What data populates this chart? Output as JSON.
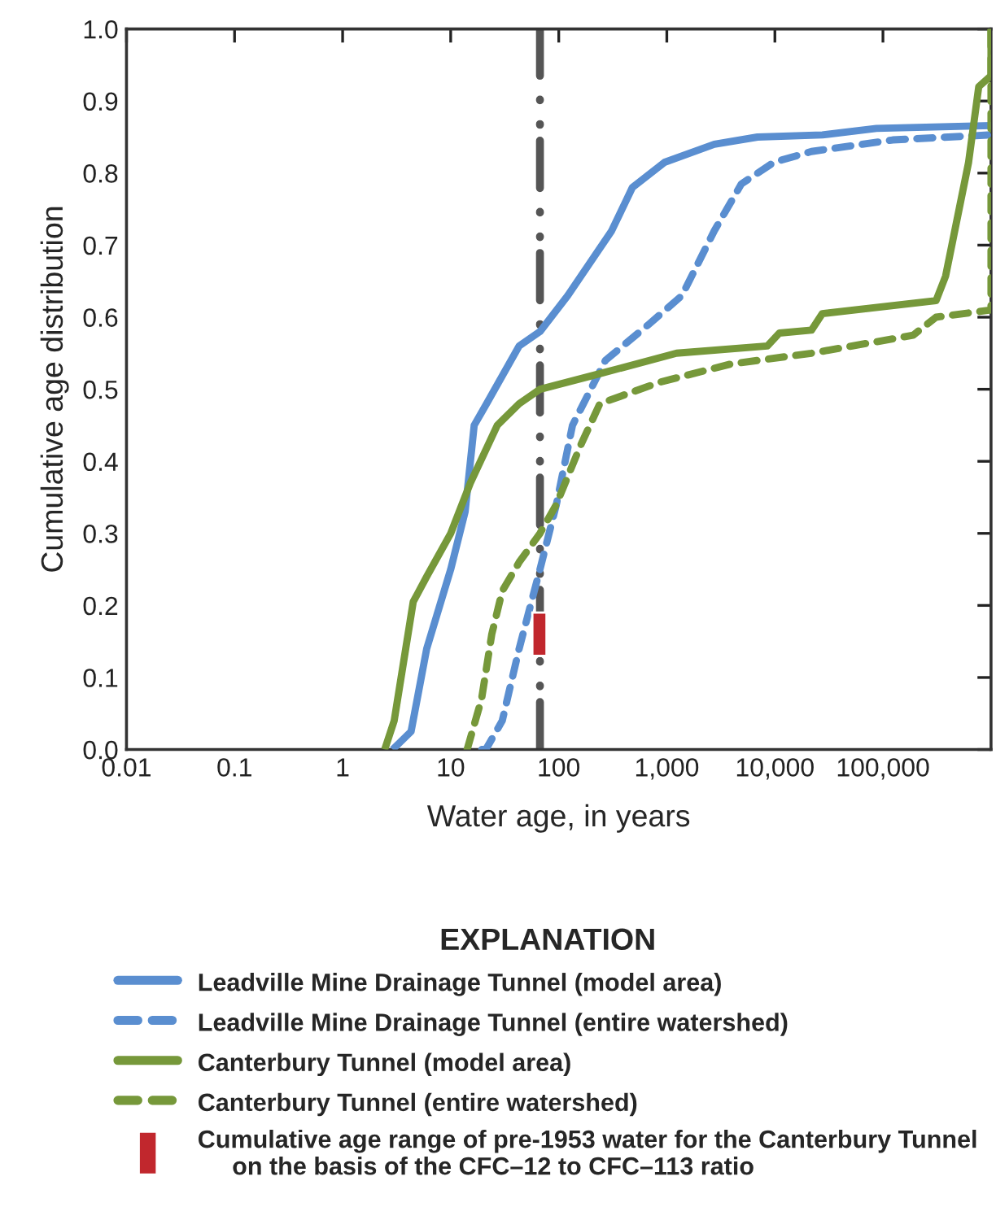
{
  "chart_data": {
    "type": "line",
    "xlabel": "Water age, in years",
    "ylabel": "Cumulative age distribution",
    "legend_title": "EXPLANATION",
    "legend": "bottom",
    "log": "x",
    "grid": false,
    "xlim": [
      0.01,
      1000000
    ],
    "xticks": [
      0.01,
      0.1,
      1,
      10,
      100,
      {
        "value": 1000,
        "label": "1,000"
      },
      {
        "value": 10000,
        "label": "10,000"
      },
      {
        "value": 100000,
        "label": "100,000"
      }
    ],
    "ylim": [
      0.0,
      1.0
    ],
    "yticks": [
      {
        "value": 0,
        "label": "0.0"
      },
      0.1,
      0.2,
      0.3,
      0.4,
      0.5,
      0.6,
      0.7,
      0.8,
      0.9,
      {
        "value": 1,
        "label": "1.0"
      }
    ],
    "ref_lines": [
      {
        "axis": "x",
        "value": 67,
        "color": "#555555",
        "line_style": "dashdot"
      }
    ],
    "series": [
      {
        "name": "Leadville Mine Drainage Tunnel (model area)",
        "color": "#5a8ed0",
        "line_style": "solid",
        "x": [
          2.9,
          4.3,
          6.0,
          10,
          13.6,
          16.5,
          21.5,
          43,
          67,
          121,
          309,
          480,
          955,
          2750,
          6900,
          27500,
          87000,
          1000000
        ],
        "values": [
          0.0,
          0.025,
          0.14,
          0.25,
          0.33,
          0.45,
          0.48,
          0.56,
          0.58,
          0.63,
          0.72,
          0.78,
          0.815,
          0.84,
          0.85,
          0.853,
          0.862,
          0.866
        ]
      },
      {
        "name": "Leadville Mine Drainage Tunnel (entire watershed)",
        "color": "#5a8ed0",
        "line_style": "dashed",
        "x": [
          19.4,
          21.5,
          30,
          43,
          67,
          95,
          134,
          270,
          680,
          1380,
          2750,
          4900,
          9800,
          21800,
          123000,
          1000000
        ],
        "values": [
          0.0,
          0.002,
          0.04,
          0.14,
          0.25,
          0.34,
          0.45,
          0.54,
          0.59,
          0.63,
          0.72,
          0.785,
          0.815,
          0.83,
          0.846,
          0.853
        ]
      },
      {
        "name": "Canterbury Tunnel (model area)",
        "color": "#76983a",
        "line_style": "solid",
        "x": [
          2.45,
          3.0,
          4.5,
          6.0,
          10,
          15.2,
          27,
          43,
          67,
          218,
          1230,
          8500,
          11000,
          21800,
          27500,
          310000,
          380000,
          620000,
          770000,
          1000000,
          1000000
        ],
        "values": [
          0.0,
          0.04,
          0.205,
          0.24,
          0.3,
          0.37,
          0.45,
          0.48,
          0.5,
          0.52,
          0.55,
          0.56,
          0.578,
          0.582,
          0.605,
          0.623,
          0.657,
          0.815,
          0.92,
          0.935,
          1.0
        ]
      },
      {
        "name": "Canterbury Tunnel (entire watershed)",
        "color": "#76983a",
        "line_style": "dashed",
        "x": [
          14.2,
          19.3,
          24,
          30,
          43,
          67,
          95,
          157,
          240,
          870,
          3900,
          21800,
          190000,
          310000,
          1000000,
          1000000
        ],
        "values": [
          0.0,
          0.07,
          0.16,
          0.22,
          0.26,
          0.3,
          0.34,
          0.42,
          0.48,
          0.51,
          0.535,
          0.55,
          0.575,
          0.6,
          0.61,
          1.0
        ]
      },
      {
        "name": "Cumulative age range of pre-1953 water for the Canterbury Tunnel\n     on the basis of the CFC–12 to CFC–113 ratio",
        "type": "bar",
        "color": "#c1272d",
        "x": [
          67
        ],
        "base": [
          0.13
        ],
        "values": [
          0.06
        ]
      }
    ]
  }
}
